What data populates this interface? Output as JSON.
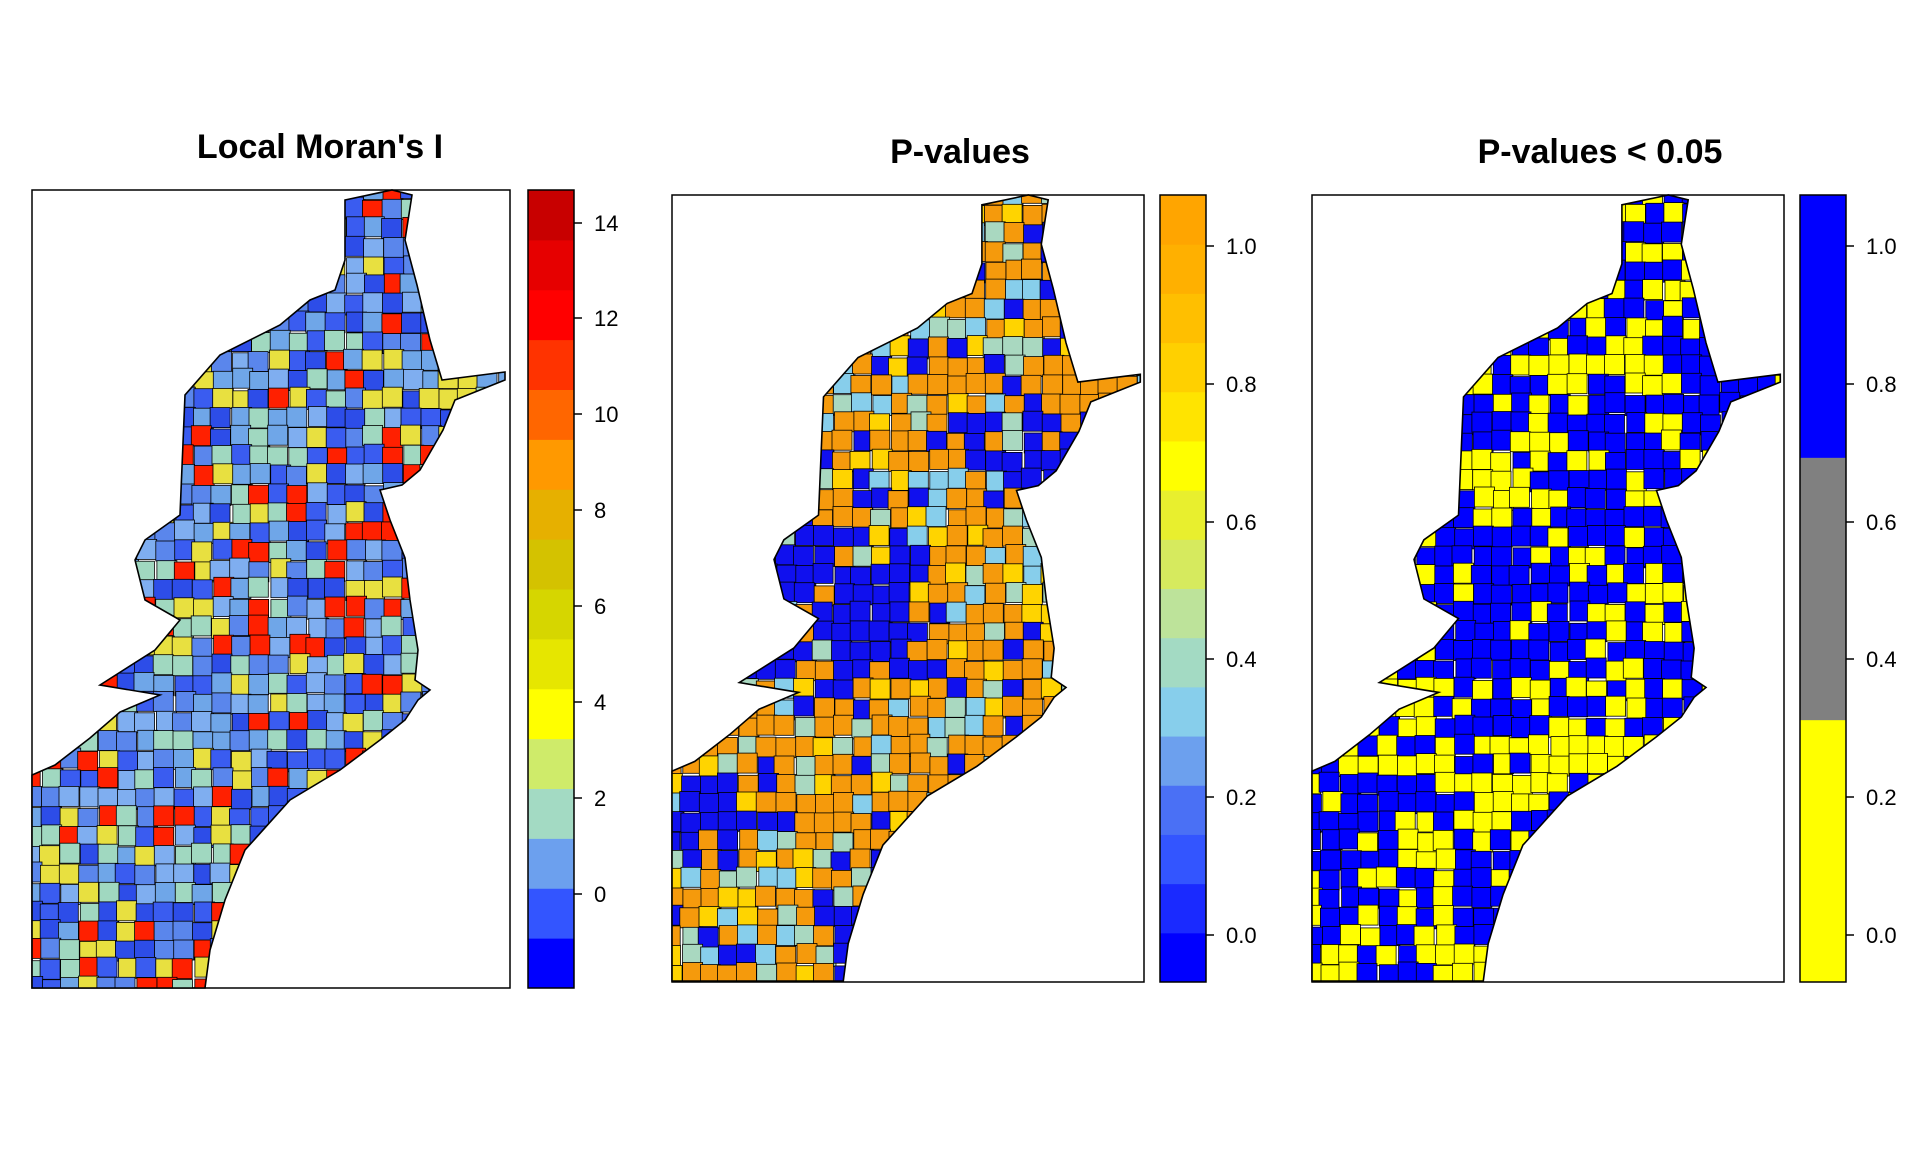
{
  "panels": [
    {
      "title": "Local Moran's I",
      "map_palette": [
        "#2d4de8",
        "#3a5cf0",
        "#5a86ec",
        "#7faef0",
        "#6fa6e8",
        "#a0d8c0",
        "#e8e040",
        "#ff2000"
      ],
      "legend": {
        "colors": [
          "#0000ff",
          "#3355ff",
          "#6ca0ee",
          "#a3dac3",
          "#cfeb6a",
          "#ffff00",
          "#e6e600",
          "#d6d600",
          "#d4c200",
          "#e6b000",
          "#ff9900",
          "#ff6600",
          "#ff3300",
          "#ff0000",
          "#e60000",
          "#c80000"
        ],
        "ticks": [
          "14",
          "12",
          "10",
          "8",
          "6",
          "4",
          "2",
          "0"
        ]
      }
    },
    {
      "title": "P-values",
      "map_palette": [
        "#f59a0c",
        "#f59a0c",
        "#f59a0c",
        "#1010ee",
        "#87ceeb",
        "#f59a0c",
        "#ffd400",
        "#a9d8c0"
      ],
      "legend": {
        "colors": [
          "#0000ff",
          "#1a2aff",
          "#3355ff",
          "#4a70f5",
          "#6ca0ee",
          "#87ceeb",
          "#a3dac3",
          "#bde39a",
          "#d6ea5e",
          "#e8ef2e",
          "#ffff00",
          "#ffe400",
          "#ffd000",
          "#ffbf00",
          "#ffb000",
          "#ffa500"
        ],
        "ticks": [
          "1.0",
          "0.8",
          "0.6",
          "0.4",
          "0.2",
          "0.0"
        ]
      }
    },
    {
      "title": "P-values < 0.05",
      "map_palette": [
        "#ffff00",
        "#0000ff"
      ],
      "legend": {
        "colors": [
          "#ffff00",
          "#808080",
          "#0000ff"
        ],
        "ticks": [
          "1.0",
          "0.8",
          "0.6",
          "0.4",
          "0.2",
          "0.0"
        ]
      }
    }
  ]
}
